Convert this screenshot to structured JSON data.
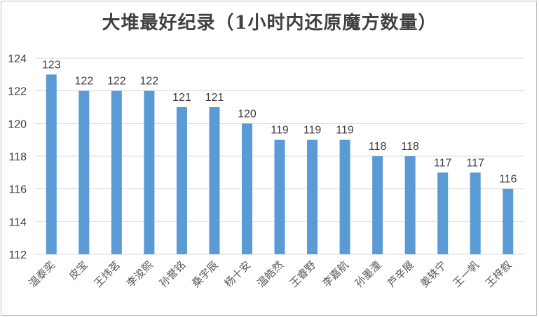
{
  "chart_data": {
    "type": "bar",
    "title": "大堆最好纪录（1小时内还原魔方数量）",
    "categories": [
      "温泰奕",
      "皮宝",
      "王炜茗",
      "李浚熙",
      "孙誉铭",
      "桑宇辰",
      "杨十安",
      "温皓然",
      "王睿野",
      "李嘉航",
      "孙墨潼",
      "芦辛展",
      "姜轶宁",
      "王一帆",
      "王梓叙"
    ],
    "values": [
      123,
      122,
      122,
      122,
      121,
      121,
      120,
      119,
      119,
      119,
      118,
      118,
      117,
      117,
      116
    ],
    "ylim": [
      112,
      124
    ],
    "yticks": [
      112,
      114,
      116,
      118,
      120,
      122,
      124
    ],
    "grid": true,
    "bar_color": "#5b9bd5",
    "grid_color": "#d9d9d9",
    "xlabel": "",
    "ylabel": ""
  }
}
